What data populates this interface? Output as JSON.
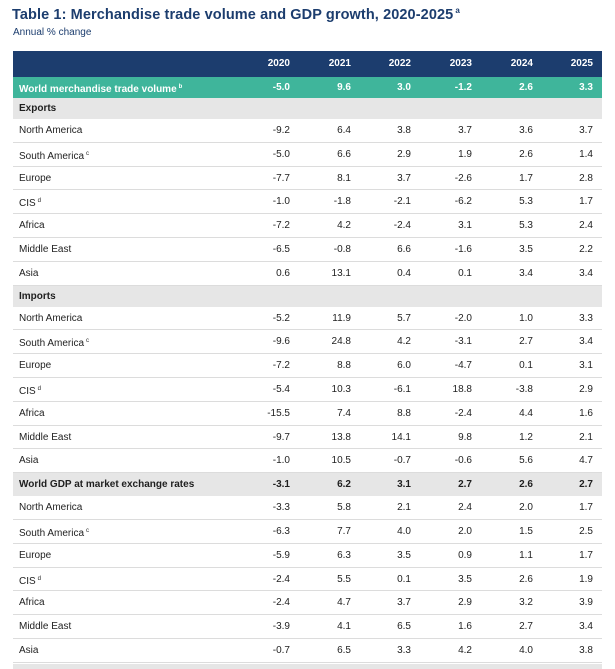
{
  "title": "Table 1: Merchandise trade volume and GDP growth, 2020-2025",
  "title_note": "a",
  "subtitle": "Annual % change",
  "years": [
    "2020",
    "2021",
    "2022",
    "2023",
    "2024",
    "2025"
  ],
  "world_trade": {
    "label": "World merchandise trade volume",
    "note": "b",
    "values": [
      "-5.0",
      "9.6",
      "3.0",
      "-1.2",
      "2.6",
      "3.3"
    ]
  },
  "exports": {
    "label": "Exports",
    "rows": [
      {
        "name": "North America",
        "note": "",
        "values": [
          "-9.2",
          "6.4",
          "3.8",
          "3.7",
          "3.6",
          "3.7"
        ]
      },
      {
        "name": "South America",
        "note": "c",
        "values": [
          "-5.0",
          "6.6",
          "2.9",
          "1.9",
          "2.6",
          "1.4"
        ]
      },
      {
        "name": "Europe",
        "note": "",
        "values": [
          "-7.7",
          "8.1",
          "3.7",
          "-2.6",
          "1.7",
          "2.8"
        ]
      },
      {
        "name": "CIS",
        "note": "d",
        "values": [
          "-1.0",
          "-1.8",
          "-2.1",
          "-6.2",
          "5.3",
          "1.7"
        ]
      },
      {
        "name": "Africa",
        "note": "",
        "values": [
          "-7.2",
          "4.2",
          "-2.4",
          "3.1",
          "5.3",
          "2.4"
        ]
      },
      {
        "name": "Middle East",
        "note": "",
        "values": [
          "-6.5",
          "-0.8",
          "6.6",
          "-1.6",
          "3.5",
          "2.2"
        ]
      },
      {
        "name": "Asia",
        "note": "",
        "values": [
          "0.6",
          "13.1",
          "0.4",
          "0.1",
          "3.4",
          "3.4"
        ]
      }
    ]
  },
  "imports": {
    "label": "Imports",
    "rows": [
      {
        "name": "North America",
        "note": "",
        "values": [
          "-5.2",
          "11.9",
          "5.7",
          "-2.0",
          "1.0",
          "3.3"
        ]
      },
      {
        "name": "South America",
        "note": "c",
        "values": [
          "-9.6",
          "24.8",
          "4.2",
          "-3.1",
          "2.7",
          "3.4"
        ]
      },
      {
        "name": "Europe",
        "note": "",
        "values": [
          "-7.2",
          "8.8",
          "6.0",
          "-4.7",
          "0.1",
          "3.1"
        ]
      },
      {
        "name": "CIS",
        "note": "d",
        "values": [
          "-5.4",
          "10.3",
          "-6.1",
          "18.8",
          "-3.8",
          "2.9"
        ]
      },
      {
        "name": "Africa",
        "note": "",
        "values": [
          "-15.5",
          "7.4",
          "8.8",
          "-2.4",
          "4.4",
          "1.6"
        ]
      },
      {
        "name": "Middle East",
        "note": "",
        "values": [
          "-9.7",
          "13.8",
          "14.1",
          "9.8",
          "1.2",
          "2.1"
        ]
      },
      {
        "name": "Asia",
        "note": "",
        "values": [
          "-1.0",
          "10.5",
          "-0.7",
          "-0.6",
          "5.6",
          "4.7"
        ]
      }
    ]
  },
  "gdp": {
    "label": "World GDP at market exchange rates",
    "values": [
      "-3.1",
      "6.2",
      "3.1",
      "2.7",
      "2.6",
      "2.7"
    ],
    "rows": [
      {
        "name": "North America",
        "note": "",
        "values": [
          "-3.3",
          "5.8",
          "2.1",
          "2.4",
          "2.0",
          "1.7"
        ]
      },
      {
        "name": "South America",
        "note": "c",
        "values": [
          "-6.3",
          "7.7",
          "4.0",
          "2.0",
          "1.5",
          "2.5"
        ]
      },
      {
        "name": "Europe",
        "note": "",
        "values": [
          "-5.9",
          "6.3",
          "3.5",
          "0.9",
          "1.1",
          "1.7"
        ]
      },
      {
        "name": "CIS",
        "note": "d",
        "values": [
          "-2.4",
          "5.5",
          "0.1",
          "3.5",
          "2.6",
          "1.9"
        ]
      },
      {
        "name": "Africa",
        "note": "",
        "values": [
          "-2.4",
          "4.7",
          "3.7",
          "2.9",
          "3.2",
          "3.9"
        ]
      },
      {
        "name": "Middle East",
        "note": "",
        "values": [
          "-3.9",
          "4.1",
          "6.5",
          "1.6",
          "2.7",
          "3.4"
        ]
      },
      {
        "name": "Asia",
        "note": "",
        "values": [
          "-0.7",
          "6.5",
          "3.3",
          "4.2",
          "4.0",
          "3.8"
        ]
      }
    ]
  }
}
